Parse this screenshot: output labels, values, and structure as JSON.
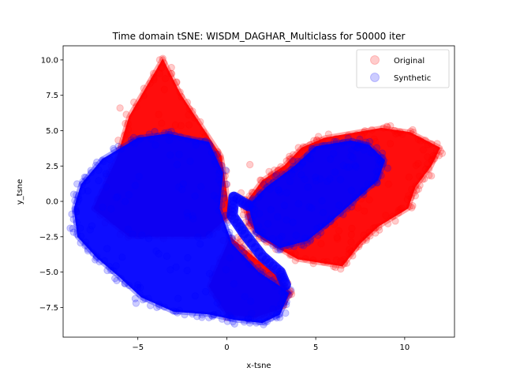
{
  "chart_data": {
    "type": "scatter",
    "title": "Time domain tSNE: WISDM_DAGHAR_Multiclass for 50000 iter",
    "xlabel": "x-tsne",
    "ylabel": "y_tsne",
    "xlim": [
      -9.2,
      12.8
    ],
    "ylim": [
      -9.6,
      11.0
    ],
    "x_ticks": [
      -5,
      0,
      5,
      10
    ],
    "x_tick_labels": [
      "−5",
      "0",
      "5",
      "10"
    ],
    "y_ticks": [
      -7.5,
      -5.0,
      -2.5,
      0.0,
      2.5,
      5.0,
      7.5,
      10.0
    ],
    "y_tick_labels": [
      "−7.5",
      "−5.0",
      "−2.5",
      "0.0",
      "2.5",
      "5.0",
      "7.5",
      "10.0"
    ],
    "grid": false,
    "legend_position": "top-right",
    "series": [
      {
        "name": "Original",
        "color": "#ff0000",
        "alpha": 0.2,
        "clusters": [
          {
            "shape": "polygon",
            "points": [
              [
                -6.2,
                3.0
              ],
              [
                -5.5,
                6.0
              ],
              [
                -3.6,
                10.1
              ],
              [
                -2.6,
                7.6
              ],
              [
                -0.3,
                3.2
              ],
              [
                0.2,
                -1.0
              ],
              [
                -1.2,
                -2.5
              ],
              [
                -5.5,
                -2.5
              ],
              [
                -7.5,
                -0.5
              ]
            ]
          },
          {
            "shape": "polygon",
            "points": [
              [
                1.0,
                -0.2
              ],
              [
                2.0,
                1.5
              ],
              [
                3.2,
                2.5
              ],
              [
                4.2,
                3.8
              ],
              [
                5.5,
                4.5
              ],
              [
                8.7,
                5.2
              ],
              [
                10.3,
                4.9
              ],
              [
                12.0,
                3.8
              ],
              [
                11.5,
                2.5
              ],
              [
                10.6,
                1.0
              ],
              [
                10.2,
                -0.5
              ],
              [
                8.5,
                -1.8
              ],
              [
                7.5,
                -3.0
              ],
              [
                6.5,
                -4.6
              ],
              [
                4.0,
                -4.1
              ],
              [
                2.0,
                -2.7
              ],
              [
                1.2,
                -1.5
              ]
            ]
          },
          {
            "shape": "polygon",
            "points": [
              [
                0.2,
                -2.5
              ],
              [
                1.6,
                -4.0
              ],
              [
                2.8,
                -5.2
              ],
              [
                3.6,
                -6.5
              ],
              [
                3.0,
                -7.6
              ],
              [
                1.6,
                -8.2
              ],
              [
                0.0,
                -8.0
              ],
              [
                -1.0,
                -6.0
              ]
            ]
          }
        ],
        "sample_points": [
          [
            -3.6,
            10.1
          ],
          [
            -3.7,
            9.5
          ],
          [
            -4.1,
            8.6
          ],
          [
            -6.0,
            6.6
          ],
          [
            -5.7,
            5.5
          ],
          [
            1.3,
            2.6
          ],
          [
            0.8,
            0.6
          ],
          [
            6.0,
            -4.6
          ],
          [
            9.0,
            5.3
          ],
          [
            11.8,
            3.6
          ],
          [
            11.5,
            1.8
          ],
          [
            10.6,
            0.4
          ],
          [
            7.7,
            -2.4
          ],
          [
            3.3,
            2.1
          ],
          [
            2.2,
            -4.9
          ],
          [
            2.5,
            -6.4
          ]
        ]
      },
      {
        "name": "Synthetic",
        "color": "#0000ff",
        "alpha": 0.2,
        "clusters": [
          {
            "shape": "polygon",
            "points": [
              [
                -8.2,
                1.2
              ],
              [
                -7.0,
                3.0
              ],
              [
                -5.0,
                4.5
              ],
              [
                -3.3,
                4.8
              ],
              [
                -1.0,
                4.2
              ],
              [
                -0.2,
                2.0
              ],
              [
                -0.4,
                -0.5
              ],
              [
                0.3,
                -3.0
              ],
              [
                1.8,
                -5.0
              ],
              [
                3.0,
                -6.0
              ],
              [
                3.5,
                -6.5
              ],
              [
                3.0,
                -8.0
              ],
              [
                2.0,
                -8.6
              ],
              [
                0.5,
                -8.4
              ],
              [
                -1.0,
                -8.0
              ],
              [
                -3.0,
                -7.8
              ],
              [
                -4.8,
                -6.8
              ],
              [
                -6.0,
                -5.4
              ],
              [
                -7.3,
                -4.0
              ],
              [
                -8.4,
                -2.5
              ],
              [
                -8.6,
                -0.5
              ]
            ]
          },
          {
            "shape": "polygon",
            "points": [
              [
                1.2,
                -0.3
              ],
              [
                2.2,
                1.0
              ],
              [
                3.8,
                2.5
              ],
              [
                5.0,
                3.9
              ],
              [
                7.0,
                4.3
              ],
              [
                8.0,
                4.0
              ],
              [
                8.9,
                2.9
              ],
              [
                8.5,
                1.5
              ],
              [
                7.5,
                0.4
              ],
              [
                5.8,
                -1.5
              ],
              [
                4.5,
                -2.8
              ],
              [
                3.0,
                -3.3
              ],
              [
                1.6,
                -2.2
              ]
            ]
          },
          {
            "shape": "arc",
            "points": [
              [
                1.2,
                -0.3
              ],
              [
                0.4,
                0.3
              ],
              [
                0.3,
                -1.0
              ],
              [
                1.0,
                -2.3
              ],
              [
                2.0,
                -3.9
              ],
              [
                3.0,
                -5.0
              ],
              [
                3.3,
                -5.9
              ]
            ]
          }
        ],
        "sample_points": [
          [
            -8.8,
            -1.9
          ],
          [
            -8.6,
            0.5
          ],
          [
            -7.2,
            2.2
          ],
          [
            -5.0,
            -5.9
          ],
          [
            -5.1,
            -7.2
          ],
          [
            -3.8,
            -7.4
          ],
          [
            -1.4,
            -8.2
          ],
          [
            1.3,
            -8.6
          ],
          [
            2.6,
            -7.6
          ],
          [
            3.2,
            -6.4
          ],
          [
            7.2,
            3.9
          ],
          [
            8.6,
            2.8
          ],
          [
            4.4,
            -2.6
          ],
          [
            2.9,
            -3.1
          ]
        ]
      }
    ]
  }
}
